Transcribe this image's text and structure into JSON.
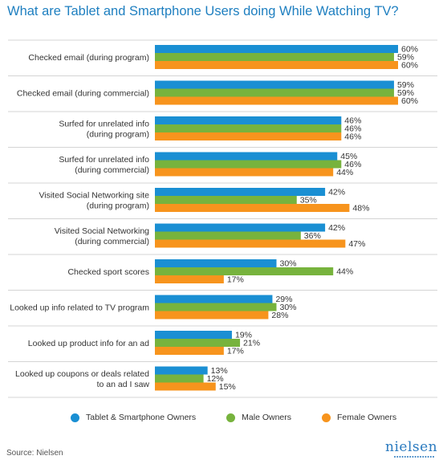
{
  "title": "What are Tablet and Smartphone Users doing While Watching TV?",
  "source": "Source: Nielsen",
  "logo_text": "nielsen",
  "colors": {
    "tablet": "#1a8fd3",
    "male": "#77b33d",
    "female": "#f7941d",
    "title": "#1e7fc0"
  },
  "chart_data": {
    "type": "bar",
    "orientation": "horizontal",
    "title": "What are Tablet and Smartphone Users doing While Watching TV?",
    "xlim": [
      0,
      60
    ],
    "grid": false,
    "legend_position": "bottom",
    "categories": [
      [
        "Checked email (during program)"
      ],
      [
        "Checked email (during commercial)"
      ],
      [
        "Surfed for unrelated info",
        "(during program)"
      ],
      [
        "Surfed for unrelated info",
        "(during commercial)"
      ],
      [
        "Visited Social Networking site",
        "(during program)"
      ],
      [
        "Visited Social Networking",
        "(during commercial)"
      ],
      [
        "Checked sport scores"
      ],
      [
        "Looked up info related to TV program"
      ],
      [
        "Looked up product info for an ad"
      ],
      [
        "Looked up coupons or deals related",
        "to an ad I saw"
      ]
    ],
    "series": [
      {
        "name": "Tablet & Smartphone Owners",
        "values": [
          60,
          59,
          46,
          45,
          42,
          42,
          30,
          29,
          19,
          13
        ]
      },
      {
        "name": "Male Owners",
        "values": [
          59,
          59,
          46,
          46,
          35,
          36,
          44,
          30,
          21,
          12
        ]
      },
      {
        "name": "Female Owners",
        "values": [
          60,
          60,
          46,
          44,
          48,
          47,
          17,
          28,
          17,
          15
        ]
      }
    ],
    "value_suffix": "%"
  }
}
